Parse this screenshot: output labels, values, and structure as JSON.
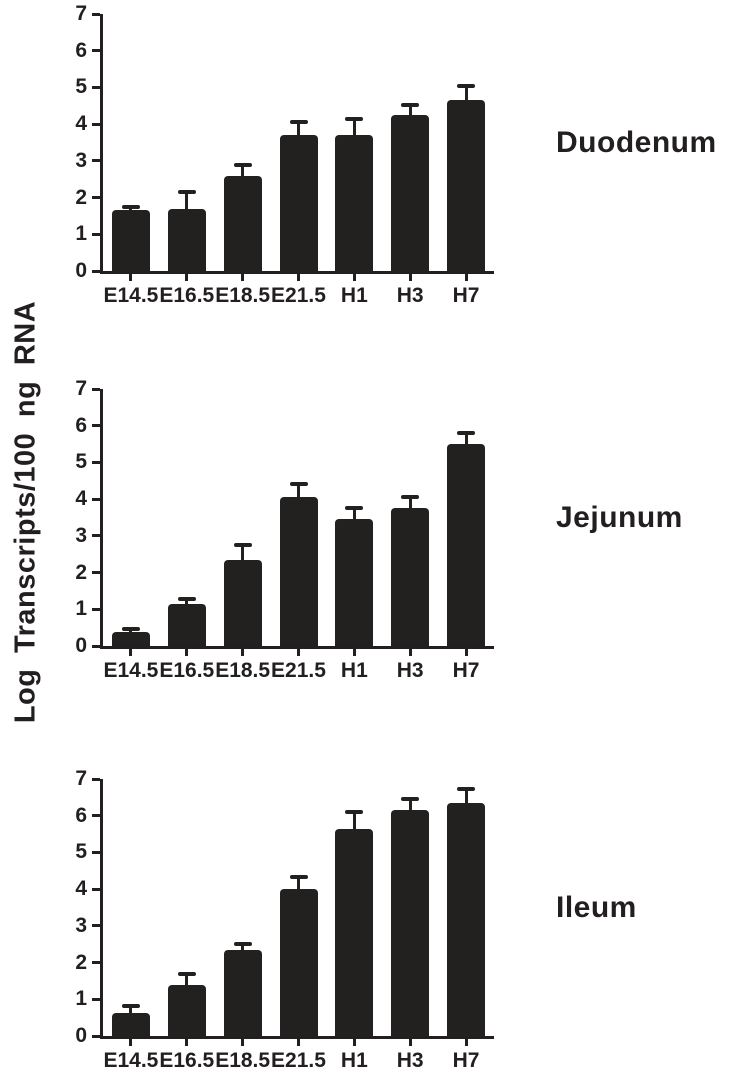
{
  "figure": {
    "ylabel": "Log Transcripts/100 ng RNA",
    "bar_color": "#232020",
    "axis_color": "#231f20"
  },
  "chart_data": [
    {
      "type": "bar",
      "title": "Duodenum",
      "categories": [
        "E14.5",
        "E16.5",
        "E18.5",
        "E21.5",
        "H1",
        "H3",
        "H7"
      ],
      "values": [
        1.65,
        1.7,
        2.6,
        3.7,
        3.7,
        4.25,
        4.65
      ],
      "errors": [
        0.1,
        0.45,
        0.28,
        0.36,
        0.45,
        0.28,
        0.4
      ],
      "xlabel": "",
      "ylabel": "Log Transcripts/100 ng RNA",
      "ylim": [
        0,
        7
      ],
      "yticks": [
        0,
        1,
        2,
        3,
        4,
        5,
        6,
        7
      ],
      "grid": false,
      "legend": "none"
    },
    {
      "type": "bar",
      "title": "Jejunum",
      "categories": [
        "E14.5",
        "E16.5",
        "E18.5",
        "E21.5",
        "H1",
        "H3",
        "H7"
      ],
      "values": [
        0.38,
        1.15,
        2.35,
        4.05,
        3.45,
        3.75,
        5.5
      ],
      "errors": [
        0.07,
        0.13,
        0.4,
        0.35,
        0.32,
        0.3,
        0.3
      ],
      "xlabel": "",
      "ylabel": "Log Transcripts/100 ng RNA",
      "ylim": [
        0,
        7
      ],
      "yticks": [
        0,
        1,
        2,
        3,
        4,
        5,
        6,
        7
      ],
      "grid": false,
      "legend": "none"
    },
    {
      "type": "bar",
      "title": "Ileum",
      "categories": [
        "E14.5",
        "E16.5",
        "E18.5",
        "E21.5",
        "H1",
        "H3",
        "H7"
      ],
      "values": [
        0.63,
        1.4,
        2.33,
        4.0,
        5.65,
        6.15,
        6.35
      ],
      "errors": [
        0.2,
        0.3,
        0.17,
        0.33,
        0.45,
        0.3,
        0.38
      ],
      "xlabel": "",
      "ylabel": "Log Transcripts/100 ng RNA",
      "ylim": [
        0,
        7
      ],
      "yticks": [
        0,
        1,
        2,
        3,
        4,
        5,
        6,
        7
      ],
      "grid": false,
      "legend": "none"
    }
  ]
}
